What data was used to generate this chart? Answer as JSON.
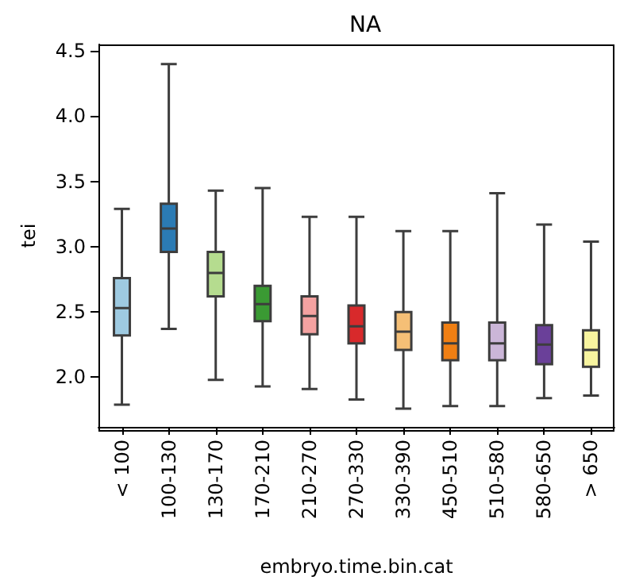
{
  "chart_data": {
    "type": "box",
    "title": "NA",
    "xlabel": "embryo.time.bin.cat",
    "ylabel": "tei",
    "categories": [
      "< 100",
      "100-130",
      "130-170",
      "170-210",
      "210-270",
      "270-330",
      "330-390",
      "450-510",
      "510-580",
      "580-650",
      "> 650"
    ],
    "colors": [
      "#9ecae1",
      "#2b7bb4",
      "#b5dc8f",
      "#3a9a33",
      "#f4a2a1",
      "#d8292b",
      "#f5bf76",
      "#f07f13",
      "#cbb6d8",
      "#6a4099",
      "#f7f49f"
    ],
    "boxes": [
      {
        "low": 1.79,
        "q1": 2.32,
        "median": 2.53,
        "q3": 2.76,
        "high": 3.29
      },
      {
        "low": 2.37,
        "q1": 2.96,
        "median": 3.14,
        "q3": 3.33,
        "high": 4.4
      },
      {
        "low": 1.98,
        "q1": 2.62,
        "median": 2.8,
        "q3": 2.96,
        "high": 3.43
      },
      {
        "low": 1.93,
        "q1": 2.43,
        "median": 2.56,
        "q3": 2.7,
        "high": 3.45
      },
      {
        "low": 1.91,
        "q1": 2.33,
        "median": 2.47,
        "q3": 2.62,
        "high": 3.23
      },
      {
        "low": 1.83,
        "q1": 2.26,
        "median": 2.39,
        "q3": 2.55,
        "high": 3.23
      },
      {
        "low": 1.76,
        "q1": 2.21,
        "median": 2.35,
        "q3": 2.5,
        "high": 3.12
      },
      {
        "low": 1.78,
        "q1": 2.13,
        "median": 2.26,
        "q3": 2.42,
        "high": 3.12
      },
      {
        "low": 1.78,
        "q1": 2.13,
        "median": 2.26,
        "q3": 2.42,
        "high": 3.41
      },
      {
        "low": 1.84,
        "q1": 2.1,
        "median": 2.25,
        "q3": 2.4,
        "high": 3.17
      },
      {
        "low": 1.86,
        "q1": 2.08,
        "median": 2.21,
        "q3": 2.36,
        "high": 3.04
      }
    ],
    "ylim": [
      1.62,
      4.55
    ],
    "yticks": [
      {
        "value": 2,
        "label": "2.0"
      },
      2.5,
      {
        "value": 3,
        "label": "3.0"
      },
      3.5,
      {
        "value": 4,
        "label": "4.0"
      },
      4.5
    ],
    "grid": false
  }
}
